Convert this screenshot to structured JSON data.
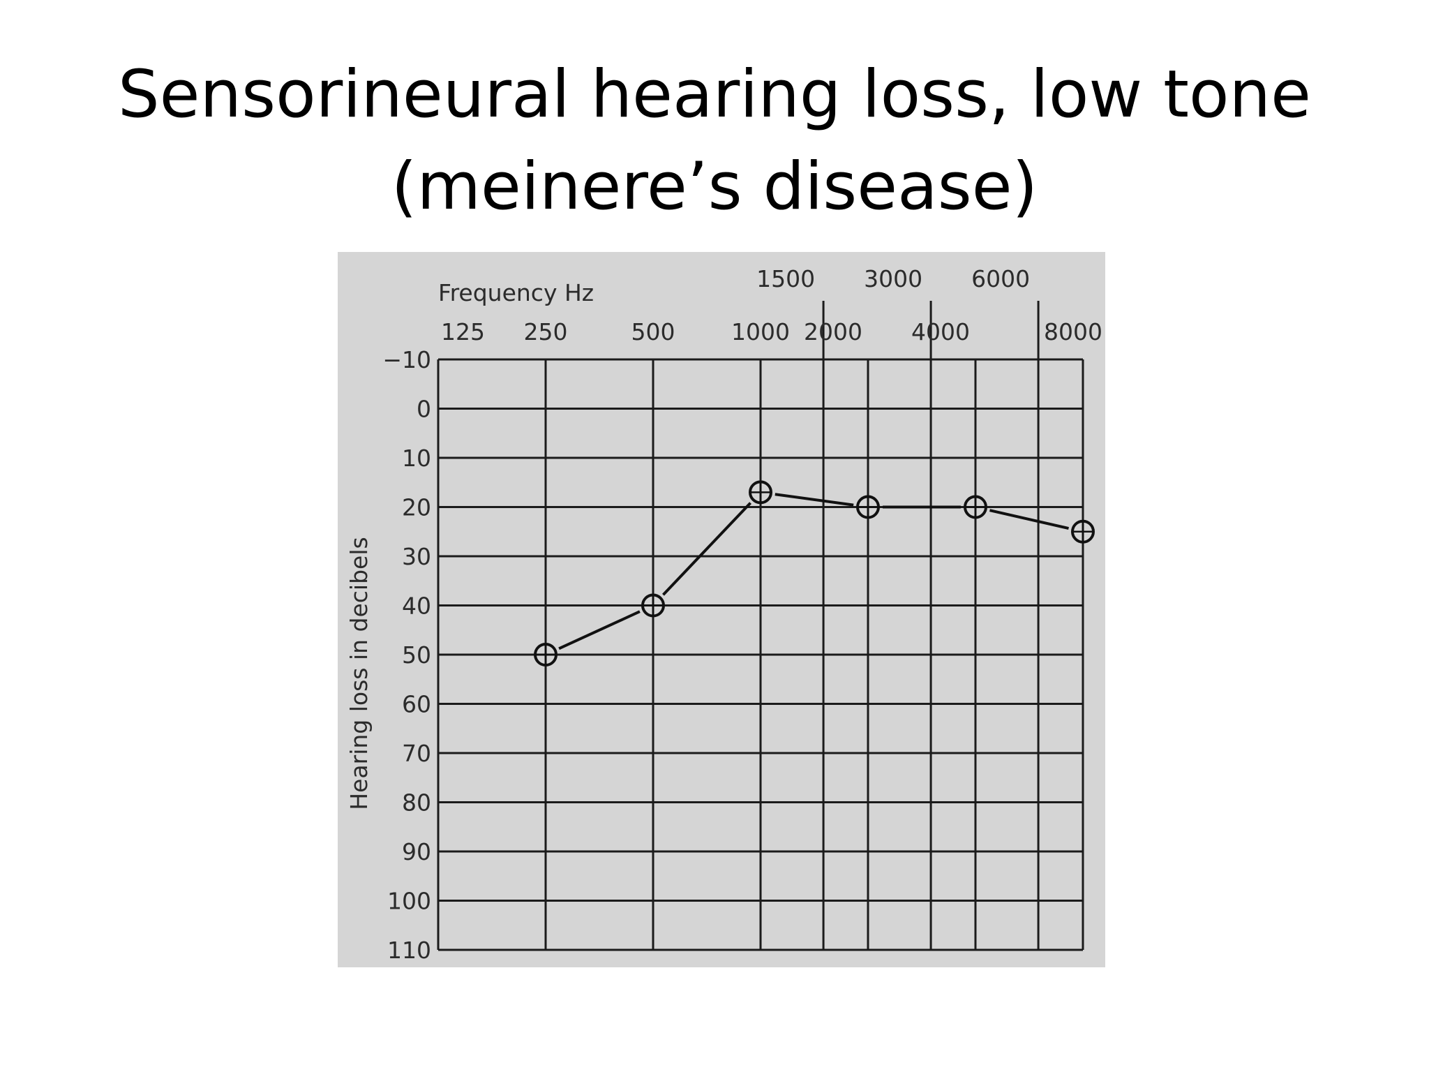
{
  "slide": {
    "title_line1": "Sensorineural hearing loss, low tone",
    "title_line2": "(meinere’s disease)"
  },
  "chart_data": {
    "type": "line",
    "xlabel": "Frequency Hz",
    "ylabel": "Hearing loss in decibels",
    "x_tick_labels_lower": [
      "125",
      "250",
      "500",
      "1000",
      "2000",
      "4000",
      "8000"
    ],
    "x_tick_labels_upper": [
      "1500",
      "3000",
      "6000"
    ],
    "y_tick_labels": [
      "−10",
      "0",
      "10",
      "20",
      "30",
      "40",
      "50",
      "60",
      "70",
      "80",
      "90",
      "100",
      "110"
    ],
    "ylim": [
      -10,
      110
    ],
    "y_inverted": true,
    "x_scale": "log2 (octave)",
    "grid": true,
    "series": [
      {
        "marker": "circle-with-crosshair",
        "x": [
          250,
          500,
          1000,
          2000,
          4000,
          8000
        ],
        "y": [
          50,
          40,
          17,
          20,
          20,
          25
        ]
      }
    ]
  }
}
